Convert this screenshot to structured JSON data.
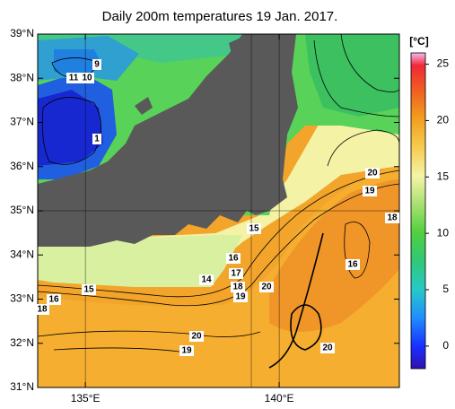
{
  "title": "Daily 200m temperatures 19 Jan. 2017.",
  "map": {
    "lon_range": [
      133.77,
      143.1
    ],
    "lat_range": [
      31,
      39
    ],
    "lat_ticks": [
      {
        "value": 39,
        "label": "39°N"
      },
      {
        "value": 38,
        "label": "38°N"
      },
      {
        "value": 37,
        "label": "37°N"
      },
      {
        "value": 36,
        "label": "36°N"
      },
      {
        "value": 35,
        "label": "35°N"
      },
      {
        "value": 34,
        "label": "34°N"
      },
      {
        "value": 33,
        "label": "33°N"
      },
      {
        "value": 32,
        "label": "32°N"
      },
      {
        "value": 31,
        "label": "31°N"
      }
    ],
    "lon_ticks": [
      {
        "value": 135,
        "label": "135°E"
      },
      {
        "value": 140,
        "label": "140°E"
      }
    ]
  },
  "colorbar": {
    "unit": "[°C]",
    "lim": [
      -2,
      26
    ],
    "ticks": [
      0,
      5,
      10,
      15,
      20,
      25
    ]
  },
  "contour_labels": [
    9,
    11,
    10,
    1,
    20,
    19,
    18,
    15,
    16,
    16,
    17,
    14,
    18,
    20,
    19,
    15,
    16,
    18,
    20,
    19,
    20
  ]
}
